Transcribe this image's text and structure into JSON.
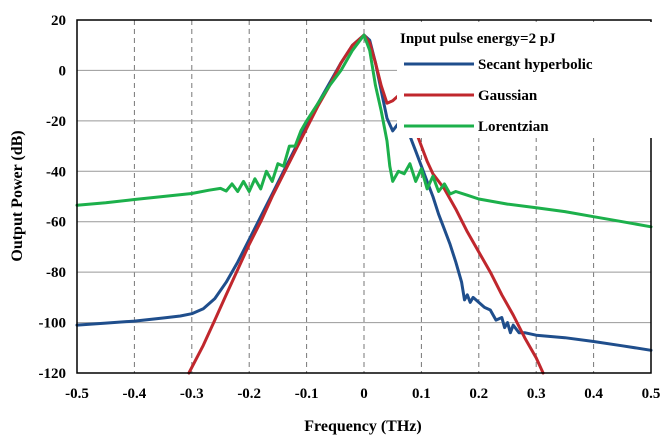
{
  "chart_data": {
    "type": "line",
    "title": "",
    "annotation": "Input pulse energy=2 pJ",
    "xlabel": "Frequency (THz)",
    "ylabel": "Output Power (dB)",
    "xlim": [
      -0.5,
      0.5
    ],
    "ylim": [
      -120,
      20
    ],
    "x_ticks": [
      -0.5,
      -0.4,
      -0.3,
      -0.2,
      -0.1,
      0,
      0.1,
      0.2,
      0.3,
      0.4,
      0.5
    ],
    "x_tick_labels": [
      "-0.5",
      "-0.4",
      "-0.3",
      "-0.2",
      "-0.1",
      "0",
      "0.1",
      "0.2",
      "0.3",
      "0.4",
      "0.5"
    ],
    "y_ticks": [
      -120,
      -100,
      -80,
      -60,
      -40,
      -20,
      0,
      20
    ],
    "y_tick_labels": [
      "-120",
      "-100",
      "-80",
      "-60",
      "-40",
      "-20",
      "0",
      "20"
    ],
    "grid": {
      "vertical": "dashed",
      "horizontal": "solid"
    },
    "legend_position": "top-right",
    "series": [
      {
        "name": "Secant hyperbolic",
        "color": "#1f4e8c",
        "points": [
          [
            -0.5,
            -101
          ],
          [
            -0.45,
            -100.2
          ],
          [
            -0.4,
            -99.4
          ],
          [
            -0.35,
            -98.2
          ],
          [
            -0.32,
            -97.4
          ],
          [
            -0.3,
            -96.5
          ],
          [
            -0.28,
            -94.5
          ],
          [
            -0.26,
            -90.5
          ],
          [
            -0.24,
            -84
          ],
          [
            -0.22,
            -76
          ],
          [
            -0.2,
            -67
          ],
          [
            -0.18,
            -58
          ],
          [
            -0.16,
            -49
          ],
          [
            -0.14,
            -40
          ],
          [
            -0.12,
            -31
          ],
          [
            -0.1,
            -22
          ],
          [
            -0.08,
            -13
          ],
          [
            -0.06,
            -5
          ],
          [
            -0.04,
            3
          ],
          [
            -0.02,
            10
          ],
          [
            0,
            14
          ],
          [
            0.01,
            12
          ],
          [
            0.02,
            3
          ],
          [
            0.03,
            -8
          ],
          [
            0.04,
            -19
          ],
          [
            0.05,
            -24
          ],
          [
            0.06,
            -21
          ],
          [
            0.07,
            -22
          ],
          [
            0.08,
            -26
          ],
          [
            0.09,
            -32
          ],
          [
            0.1,
            -38
          ],
          [
            0.11,
            -44
          ],
          [
            0.12,
            -50
          ],
          [
            0.13,
            -57
          ],
          [
            0.14,
            -63
          ],
          [
            0.15,
            -69
          ],
          [
            0.16,
            -76
          ],
          [
            0.17,
            -84
          ],
          [
            0.175,
            -91
          ],
          [
            0.18,
            -89
          ],
          [
            0.185,
            -92
          ],
          [
            0.19,
            -90
          ],
          [
            0.2,
            -92
          ],
          [
            0.21,
            -94
          ],
          [
            0.22,
            -95
          ],
          [
            0.23,
            -99
          ],
          [
            0.24,
            -98
          ],
          [
            0.245,
            -102
          ],
          [
            0.25,
            -100
          ],
          [
            0.255,
            -104
          ],
          [
            0.26,
            -101
          ],
          [
            0.27,
            -104
          ],
          [
            0.28,
            -104
          ],
          [
            0.3,
            -105
          ],
          [
            0.35,
            -106
          ],
          [
            0.4,
            -107.5
          ],
          [
            0.45,
            -109.2
          ],
          [
            0.5,
            -111
          ]
        ]
      },
      {
        "name": "Gaussian",
        "color": "#c0272d",
        "points": [
          [
            -0.305,
            -120
          ],
          [
            -0.28,
            -109
          ],
          [
            -0.26,
            -99
          ],
          [
            -0.24,
            -89
          ],
          [
            -0.22,
            -79
          ],
          [
            -0.2,
            -69
          ],
          [
            -0.18,
            -60
          ],
          [
            -0.16,
            -50
          ],
          [
            -0.14,
            -41
          ],
          [
            -0.12,
            -32
          ],
          [
            -0.1,
            -23
          ],
          [
            -0.08,
            -14
          ],
          [
            -0.06,
            -6
          ],
          [
            -0.04,
            3
          ],
          [
            -0.02,
            10
          ],
          [
            0,
            14
          ],
          [
            0.01,
            11
          ],
          [
            0.02,
            3
          ],
          [
            0.03,
            -6
          ],
          [
            0.04,
            -13
          ],
          [
            0.05,
            -12
          ],
          [
            0.06,
            -10
          ],
          [
            0.07,
            -12
          ],
          [
            0.08,
            -18
          ],
          [
            0.09,
            -24
          ],
          [
            0.1,
            -30
          ],
          [
            0.11,
            -36
          ],
          [
            0.12,
            -41
          ],
          [
            0.14,
            -47
          ],
          [
            0.16,
            -55
          ],
          [
            0.18,
            -64
          ],
          [
            0.2,
            -72
          ],
          [
            0.22,
            -80
          ],
          [
            0.24,
            -89
          ],
          [
            0.26,
            -97
          ],
          [
            0.28,
            -106
          ],
          [
            0.3,
            -114
          ],
          [
            0.312,
            -120
          ]
        ]
      },
      {
        "name": "Lorentzian",
        "color": "#1cb04b",
        "points": [
          [
            -0.5,
            -53.5
          ],
          [
            -0.45,
            -52.5
          ],
          [
            -0.4,
            -51.2
          ],
          [
            -0.35,
            -50
          ],
          [
            -0.3,
            -48.8
          ],
          [
            -0.27,
            -47.5
          ],
          [
            -0.25,
            -46.8
          ],
          [
            -0.24,
            -47.8
          ],
          [
            -0.23,
            -45
          ],
          [
            -0.22,
            -48
          ],
          [
            -0.21,
            -44
          ],
          [
            -0.2,
            -48
          ],
          [
            -0.19,
            -43
          ],
          [
            -0.18,
            -47
          ],
          [
            -0.17,
            -40
          ],
          [
            -0.16,
            -44
          ],
          [
            -0.15,
            -37
          ],
          [
            -0.14,
            -38
          ],
          [
            -0.13,
            -30
          ],
          [
            -0.12,
            -30
          ],
          [
            -0.11,
            -24
          ],
          [
            -0.1,
            -20
          ],
          [
            -0.08,
            -13
          ],
          [
            -0.06,
            -6
          ],
          [
            -0.04,
            0
          ],
          [
            -0.02,
            8
          ],
          [
            0,
            14
          ],
          [
            0.01,
            8
          ],
          [
            0.02,
            -6
          ],
          [
            0.03,
            -16
          ],
          [
            0.04,
            -28
          ],
          [
            0.045,
            -38
          ],
          [
            0.05,
            -44
          ],
          [
            0.06,
            -40
          ],
          [
            0.07,
            -41
          ],
          [
            0.08,
            -37
          ],
          [
            0.09,
            -44
          ],
          [
            0.1,
            -39
          ],
          [
            0.11,
            -47
          ],
          [
            0.12,
            -42
          ],
          [
            0.13,
            -48
          ],
          [
            0.14,
            -45
          ],
          [
            0.15,
            -49
          ],
          [
            0.16,
            -48
          ],
          [
            0.18,
            -49.5
          ],
          [
            0.2,
            -51
          ],
          [
            0.25,
            -53
          ],
          [
            0.3,
            -54.5
          ],
          [
            0.35,
            -56
          ],
          [
            0.4,
            -58
          ],
          [
            0.45,
            -60
          ],
          [
            0.5,
            -62
          ]
        ]
      }
    ]
  }
}
